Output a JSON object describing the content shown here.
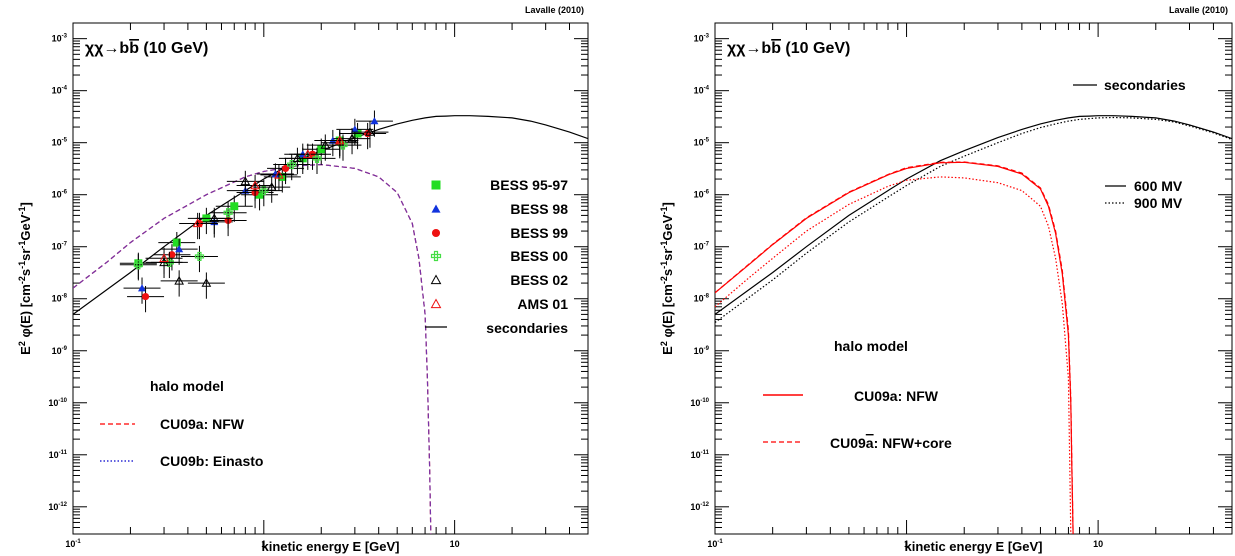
{
  "chart_data": [
    {
      "type": "scatter",
      "credit": "Lavalle (2010)",
      "channel": {
        "main": "χχ→b",
        "bbar": "b",
        "mass": " (10 GeV)"
      },
      "xlabel": "kinetic energy E [GeV]",
      "ylabel": {
        "pre": "E",
        "e1": "2",
        "mid": " φ(E) [cm",
        "e2": "-2",
        "m2": "s",
        "e3": "-1",
        "m3": "sr",
        "e4": "-1",
        "m4": "GeV",
        "e5": "-1",
        "post": "]"
      },
      "xscale": "log",
      "yscale": "log",
      "xlim": [
        0.1,
        50
      ],
      "ylim": [
        3e-13,
        0.002
      ],
      "xticks": [
        {
          "v": 0.1,
          "label": "10",
          "exp": "-1"
        },
        {
          "v": 1,
          "label": "1",
          "exp": ""
        },
        {
          "v": 10,
          "label": "10",
          "exp": ""
        }
      ],
      "yticks": [
        {
          "v": 1e-12,
          "label": "10",
          "exp": "-12"
        },
        {
          "v": 1e-11,
          "label": "10",
          "exp": "-11"
        },
        {
          "v": 1e-10,
          "label": "10",
          "exp": "-10"
        },
        {
          "v": 1e-09,
          "label": "10",
          "exp": "-9"
        },
        {
          "v": 1e-08,
          "label": "10",
          "exp": "-8"
        },
        {
          "v": 1e-07,
          "label": "10",
          "exp": "-7"
        },
        {
          "v": 1e-06,
          "label": "10",
          "exp": "-6"
        },
        {
          "v": 1e-05,
          "label": "10",
          "exp": "-5"
        },
        {
          "v": 0.0001,
          "label": "10",
          "exp": "-4"
        },
        {
          "v": 0.001,
          "label": "10",
          "exp": "-3"
        }
      ],
      "halo_title": "halo model",
      "halo_legend": [
        {
          "name": "CU09a: NFW",
          "color": "#ff0000",
          "dash": "dash"
        },
        {
          "name": "CU09b: Einasto",
          "color": "#0000cc",
          "dash": "dot"
        }
      ],
      "lines": [
        {
          "name": "secondaries",
          "color": "#000000",
          "dash": "solid",
          "x": [
            0.1,
            0.2,
            0.3,
            0.5,
            0.8,
            1,
            1.5,
            2,
            3,
            4,
            5,
            6,
            7,
            8,
            9,
            10,
            12,
            15,
            20,
            25,
            30,
            40,
            50
          ],
          "y": [
            5e-09,
            3.2e-08,
            1e-07,
            4e-07,
            1.2e-06,
            2e-06,
            4.5e-06,
            7e-06,
            1.25e-05,
            1.8e-05,
            2.3e-05,
            2.7e-05,
            3e-05,
            3.2e-05,
            3.25e-05,
            3.3e-05,
            3.3e-05,
            3.2e-05,
            3e-05,
            2.6e-05,
            2.2e-05,
            1.6e-05,
            1.2e-05
          ]
        },
        {
          "name": "CU09a: NFW",
          "color": "#cc1111",
          "dash": "dash",
          "x": [
            0.1,
            0.15,
            0.2,
            0.3,
            0.5,
            0.8,
            1,
            1.5,
            2,
            3,
            4,
            5,
            6,
            6.5,
            7,
            7.2,
            7.4,
            7.5
          ],
          "y": [
            1.6e-08,
            5e-08,
            1.2e-07,
            3.5e-07,
            1e-06,
            2.2e-06,
            2.8e-06,
            3.6e-06,
            3.8e-06,
            3.2e-06,
            2.2e-06,
            1.1e-06,
            2.8e-07,
            6e-08,
            5e-09,
            3e-10,
            5e-12,
            3e-13
          ]
        },
        {
          "name": "CU09b: Einasto",
          "color": "#7733aa",
          "dash": "dash",
          "x": [
            0.1,
            0.15,
            0.2,
            0.3,
            0.5,
            0.8,
            1,
            1.5,
            2,
            3,
            4,
            5,
            6,
            6.5,
            7,
            7.2,
            7.4,
            7.5
          ],
          "y": [
            1.6e-08,
            5e-08,
            1.2e-07,
            3.5e-07,
            1e-06,
            2.2e-06,
            2.8e-06,
            3.6e-06,
            3.8e-06,
            3.2e-06,
            2.2e-06,
            1.1e-06,
            2.8e-07,
            6e-08,
            5e-09,
            3e-10,
            5e-12,
            3e-13
          ]
        }
      ],
      "data_sets": [
        {
          "name": "BESS 95-97",
          "marker": "square",
          "color": "#22dd22",
          "x": [
            0.22,
            0.35,
            0.5,
            0.7,
            0.95,
            1.25,
            1.6,
            2.0,
            2.5,
            3.1
          ],
          "y": [
            4.8e-08,
            1.2e-07,
            3.5e-07,
            6e-07,
            1e-06,
            2.2e-06,
            5e-06,
            7.5e-06,
            1.1e-05,
            1.5e-05
          ]
        },
        {
          "name": "BESS 98",
          "marker": "tri",
          "color": "#1133dd",
          "x": [
            0.23,
            0.36,
            0.55,
            0.8,
            1.15,
            1.6,
            2.3,
            3.0,
            3.8
          ],
          "y": [
            1.6e-08,
            9e-08,
            3e-07,
            1.2e-06,
            2.5e-06,
            6e-06,
            1.1e-05,
            1.8e-05,
            2.6e-05
          ]
        },
        {
          "name": "BESS 99",
          "marker": "circle",
          "color": "#ee1111",
          "x": [
            0.24,
            0.33,
            0.46,
            0.65,
            0.9,
            1.3,
            1.8,
            2.5,
            3.5
          ],
          "y": [
            1.1e-08,
            7e-08,
            2.8e-07,
            3.2e-07,
            1.1e-06,
            3.2e-06,
            6e-06,
            1e-05,
            1.5e-05
          ]
        },
        {
          "name": "BESS 00",
          "marker": "cross",
          "color": "#44dd44",
          "x": [
            0.22,
            0.32,
            0.46,
            0.65,
            1.0,
            1.4,
            1.9,
            2.6
          ],
          "y": [
            4.5e-08,
            5e-08,
            6.5e-08,
            4.5e-07,
            1.2e-06,
            3.8e-06,
            5e-06,
            9e-06
          ]
        },
        {
          "name": "BESS 02",
          "marker": "otri",
          "color": "#000000",
          "x": [
            0.3,
            0.36,
            0.5,
            0.55,
            0.8,
            1.1,
            1.5,
            2.1,
            2.9,
            3.6
          ],
          "y": [
            5e-08,
            2.2e-08,
            2e-08,
            3.5e-07,
            1.8e-06,
            1.4e-06,
            5e-06,
            9e-06,
            1.2e-05,
            1.6e-05
          ]
        },
        {
          "name": "AMS 01",
          "marker": "otri",
          "color": "#ee1111",
          "x": [
            0.3,
            0.45,
            0.9,
            1.2,
            1.7,
            2.5
          ],
          "y": [
            6e-08,
            2.8e-07,
            1.5e-06,
            2.4e-06,
            6e-06,
            1.1e-05
          ]
        }
      ],
      "legend": [
        "BESS 95-97",
        "BESS 98",
        "BESS 99",
        "BESS 00",
        "BESS 02",
        "AMS 01",
        "secondaries"
      ]
    },
    {
      "type": "line",
      "credit": "Lavalle (2010)",
      "channel": {
        "main": "χχ→b",
        "bbar": "b",
        "mass": " (10 GeV)"
      },
      "xlabel": "kinetic energy E [GeV]",
      "ylabel": {
        "pre": "E",
        "e1": "2",
        "mid": " φ(E) [cm",
        "e2": "-2",
        "m2": "s",
        "e3": "-1",
        "m3": "sr",
        "e4": "-1",
        "m4": "GeV",
        "e5": "-1",
        "post": "]"
      },
      "xscale": "log",
      "yscale": "log",
      "xlim": [
        0.1,
        50
      ],
      "ylim": [
        3e-13,
        0.002
      ],
      "xticks": [
        {
          "v": 0.1,
          "label": "10",
          "exp": "-1"
        },
        {
          "v": 1,
          "label": "1",
          "exp": ""
        },
        {
          "v": 10,
          "label": "10",
          "exp": ""
        }
      ],
      "yticks": [
        {
          "v": 1e-12,
          "label": "10",
          "exp": "-12"
        },
        {
          "v": 1e-11,
          "label": "10",
          "exp": "-11"
        },
        {
          "v": 1e-10,
          "label": "10",
          "exp": "-10"
        },
        {
          "v": 1e-09,
          "label": "10",
          "exp": "-9"
        },
        {
          "v": 1e-08,
          "label": "10",
          "exp": "-8"
        },
        {
          "v": 1e-07,
          "label": "10",
          "exp": "-7"
        },
        {
          "v": 1e-06,
          "label": "10",
          "exp": "-6"
        },
        {
          "v": 1e-05,
          "label": "10",
          "exp": "-5"
        },
        {
          "v": 0.0001,
          "label": "10",
          "exp": "-4"
        },
        {
          "v": 0.001,
          "label": "10",
          "exp": "-3"
        }
      ],
      "secondaries_label": "secondaries",
      "modulation_legend": [
        {
          "name": "600 MV",
          "dash": "solid"
        },
        {
          "name": "900 MV",
          "dash": "dot"
        }
      ],
      "halo_title": "halo model",
      "halo_legend": [
        {
          "name": "CU09a: NFW",
          "color": "#ff0000",
          "dash": "solid"
        },
        {
          "name_parts": [
            "CU09",
            "a",
            ": NFW+core"
          ],
          "color": "#ff0000",
          "dash": "dash"
        }
      ],
      "lines": [
        {
          "name": "secondaries 600 MV",
          "color": "#000000",
          "dash": "solid",
          "x": [
            0.1,
            0.2,
            0.3,
            0.5,
            0.8,
            1,
            1.5,
            2,
            3,
            4,
            5,
            6,
            7,
            8,
            9,
            10,
            12,
            15,
            20,
            25,
            30,
            40,
            50
          ],
          "y": [
            5e-09,
            3.2e-08,
            1e-07,
            4e-07,
            1.2e-06,
            2e-06,
            4.5e-06,
            7e-06,
            1.25e-05,
            1.8e-05,
            2.3e-05,
            2.7e-05,
            3e-05,
            3.2e-05,
            3.25e-05,
            3.3e-05,
            3.3e-05,
            3.2e-05,
            3e-05,
            2.6e-05,
            2.2e-05,
            1.6e-05,
            1.2e-05
          ]
        },
        {
          "name": "secondaries 900 MV",
          "color": "#000000",
          "dash": "dot",
          "x": [
            0.1,
            0.2,
            0.3,
            0.5,
            0.8,
            1,
            1.5,
            2,
            3,
            4,
            5,
            6,
            7,
            8,
            9,
            10,
            12,
            15,
            20,
            25,
            30,
            40,
            50
          ],
          "y": [
            3.5e-09,
            2.3e-08,
            7.5e-08,
            3e-07,
            9e-07,
            1.5e-06,
            3.5e-06,
            5.5e-06,
            1e-05,
            1.5e-05,
            1.95e-05,
            2.3e-05,
            2.6e-05,
            2.8e-05,
            2.9e-05,
            3e-05,
            3.05e-05,
            3e-05,
            2.8e-05,
            2.5e-05,
            2.1e-05,
            1.55e-05,
            1.15e-05
          ]
        },
        {
          "name": "CU09a NFW 600 MV",
          "color": "#ff0000",
          "dash": "solid",
          "x": [
            0.1,
            0.15,
            0.2,
            0.3,
            0.5,
            0.8,
            1,
            1.5,
            2,
            3,
            4,
            5,
            5.5,
            6,
            6.5,
            7,
            7.2,
            7.3,
            7.4
          ],
          "y": [
            1.3e-08,
            4.5e-08,
            1.1e-07,
            3.5e-07,
            1.1e-06,
            2.4e-06,
            3.2e-06,
            4.1e-06,
            4.2e-06,
            3.5e-06,
            2.5e-06,
            1.3e-06,
            6e-07,
            1.8e-07,
            3e-08,
            2e-09,
            1e-10,
            5e-12,
            3e-13
          ]
        },
        {
          "name": "CU09a NFW+core 600 MV",
          "color": "#ff0000",
          "dash": "dash",
          "x": [
            0.1,
            0.15,
            0.2,
            0.3,
            0.5,
            0.8,
            1,
            1.5,
            2,
            3,
            4,
            5,
            5.5,
            6,
            6.5,
            7,
            7.2,
            7.3,
            7.4
          ],
          "y": [
            1.3e-08,
            4.6e-08,
            1.12e-07,
            3.6e-07,
            1.12e-06,
            2.45e-06,
            3.3e-06,
            4.2e-06,
            4.25e-06,
            3.6e-06,
            2.6e-06,
            1.35e-06,
            6.5e-07,
            2e-07,
            3.5e-08,
            2.5e-09,
            1.2e-10,
            6e-12,
            3e-13
          ]
        },
        {
          "name": "CU09a NFW 900 MV",
          "color": "#ff0000",
          "dash": "dot",
          "x": [
            0.1,
            0.15,
            0.2,
            0.3,
            0.5,
            0.8,
            1,
            1.5,
            2,
            3,
            4,
            5,
            5.5,
            6,
            6.5,
            7,
            7.1,
            7.2
          ],
          "y": [
            7e-09,
            2.5e-08,
            6e-08,
            2e-07,
            6.5e-07,
            1.45e-06,
            1.9e-06,
            2.2e-06,
            2.1e-06,
            1.7e-06,
            1.2e-06,
            6e-07,
            2.5e-07,
            6e-08,
            8e-09,
            3e-10,
            1e-11,
            3e-13
          ]
        }
      ]
    }
  ]
}
